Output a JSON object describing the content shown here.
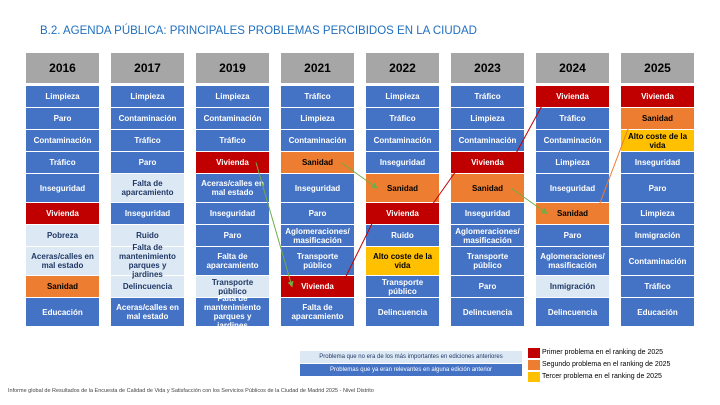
{
  "title": "B.2. AGENDA PÚBLICA: PRINCIPALES PROBLEMAS PERCIBIDOS EN LA CIUDAD",
  "colors": {
    "header": "#a6a6a6",
    "blue": "#4472c4",
    "light": "#dde8f5",
    "red": "#c00000",
    "orange": "#ed7d31",
    "yellow": "#ffc000",
    "arrow_green": "#70ad47",
    "arrow_red": "#c00000",
    "arrow_orange": "#ed7d31"
  },
  "chart_data": {
    "type": "table",
    "columns": [
      {
        "year": "2016",
        "items": [
          {
            "label": "Limpieza",
            "style": "blue"
          },
          {
            "label": "Paro",
            "style": "blue"
          },
          {
            "label": "Contaminación",
            "style": "blue"
          },
          {
            "label": "Tráfico",
            "style": "blue"
          },
          {
            "label": "Inseguridad",
            "style": "blue"
          },
          {
            "label": "Vivienda",
            "style": "red"
          },
          {
            "label": "Pobreza",
            "style": "light"
          },
          {
            "label": "Aceras/calles en mal estado",
            "style": "light"
          },
          {
            "label": "Sanidad",
            "style": "orange"
          },
          {
            "label": "Educación",
            "style": "blue"
          }
        ]
      },
      {
        "year": "2017",
        "items": [
          {
            "label": "Limpieza",
            "style": "blue"
          },
          {
            "label": "Contaminación",
            "style": "blue"
          },
          {
            "label": "Tráfico",
            "style": "blue"
          },
          {
            "label": "Paro",
            "style": "blue"
          },
          {
            "label": "Falta de aparcamiento",
            "style": "light"
          },
          {
            "label": "Inseguridad",
            "style": "blue"
          },
          {
            "label": "Ruido",
            "style": "light"
          },
          {
            "label": "Falta de mantenimiento parques y jardines",
            "style": "light"
          },
          {
            "label": "Delincuencia",
            "style": "light"
          },
          {
            "label": "Aceras/calles en mal estado",
            "style": "blue"
          }
        ]
      },
      {
        "year": "2019",
        "items": [
          {
            "label": "Limpieza",
            "style": "blue"
          },
          {
            "label": "Contaminación",
            "style": "blue"
          },
          {
            "label": "Tráfico",
            "style": "blue"
          },
          {
            "label": "Vivienda",
            "style": "red"
          },
          {
            "label": "Aceras/calles en mal estado",
            "style": "blue"
          },
          {
            "label": "Inseguridad",
            "style": "blue"
          },
          {
            "label": "Paro",
            "style": "blue"
          },
          {
            "label": "Falta de aparcamiento",
            "style": "blue"
          },
          {
            "label": "Transporte público",
            "style": "light"
          },
          {
            "label": "Falta de mantenimiento parques y jardines",
            "style": "blue"
          }
        ]
      },
      {
        "year": "2021",
        "items": [
          {
            "label": "Tráfico",
            "style": "blue"
          },
          {
            "label": "Limpieza",
            "style": "blue"
          },
          {
            "label": "Contaminación",
            "style": "blue"
          },
          {
            "label": "Sanidad",
            "style": "orange"
          },
          {
            "label": "Inseguridad",
            "style": "blue"
          },
          {
            "label": "Paro",
            "style": "blue"
          },
          {
            "label": "Aglomeraciones/ masificación",
            "style": "blue"
          },
          {
            "label": "Transporte público",
            "style": "blue"
          },
          {
            "label": "Vivienda",
            "style": "red"
          },
          {
            "label": "Falta de aparcamiento",
            "style": "blue"
          }
        ]
      },
      {
        "year": "2022",
        "items": [
          {
            "label": "Limpieza",
            "style": "blue"
          },
          {
            "label": "Tráfico",
            "style": "blue"
          },
          {
            "label": "Contaminación",
            "style": "blue"
          },
          {
            "label": "Inseguridad",
            "style": "blue"
          },
          {
            "label": "Sanidad",
            "style": "orange"
          },
          {
            "label": "Vivienda",
            "style": "red"
          },
          {
            "label": "Ruido",
            "style": "blue"
          },
          {
            "label": "Alto coste de la vida",
            "style": "yellow"
          },
          {
            "label": "Transporte público",
            "style": "blue"
          },
          {
            "label": "Delincuencia",
            "style": "blue"
          }
        ]
      },
      {
        "year": "2023",
        "items": [
          {
            "label": "Tráfico",
            "style": "blue"
          },
          {
            "label": "Limpieza",
            "style": "blue"
          },
          {
            "label": "Contaminación",
            "style": "blue"
          },
          {
            "label": "Vivienda",
            "style": "red"
          },
          {
            "label": "Sanidad",
            "style": "orange"
          },
          {
            "label": "Inseguridad",
            "style": "blue"
          },
          {
            "label": "Aglomeraciones/ masificación",
            "style": "blue"
          },
          {
            "label": "Transporte público",
            "style": "blue"
          },
          {
            "label": "Paro",
            "style": "blue"
          },
          {
            "label": "Delincuencia",
            "style": "blue"
          }
        ]
      },
      {
        "year": "2024",
        "items": [
          {
            "label": "Vivienda",
            "style": "red"
          },
          {
            "label": "Tráfico",
            "style": "blue"
          },
          {
            "label": "Contaminación",
            "style": "blue"
          },
          {
            "label": "Limpieza",
            "style": "blue"
          },
          {
            "label": "Inseguridad",
            "style": "blue"
          },
          {
            "label": "Sanidad",
            "style": "orange"
          },
          {
            "label": "Paro",
            "style": "blue"
          },
          {
            "label": "Aglomeraciones/ masificación",
            "style": "blue"
          },
          {
            "label": "Inmigración",
            "style": "light"
          },
          {
            "label": "Delincuencia",
            "style": "blue"
          }
        ]
      },
      {
        "year": "2025",
        "items": [
          {
            "label": "Vivienda",
            "style": "red"
          },
          {
            "label": "Sanidad",
            "style": "orange"
          },
          {
            "label": "Alto coste de la vida",
            "style": "yellow"
          },
          {
            "label": "Inseguridad",
            "style": "blue"
          },
          {
            "label": "Paro",
            "style": "blue"
          },
          {
            "label": "Limpieza",
            "style": "blue"
          },
          {
            "label": "Inmigración",
            "style": "blue"
          },
          {
            "label": "Contaminación",
            "style": "blue"
          },
          {
            "label": "Tráfico",
            "style": "blue"
          },
          {
            "label": "Educación",
            "style": "blue"
          }
        ]
      }
    ],
    "legend": {
      "light": "Problema que no era de los más importantes en ediciones anteriores",
      "blue": "Problemas que ya eran relevantes en alguna edición anterior",
      "red": "Primer problema en el ranking de 2025",
      "orange": "Segundo problema en el ranking de 2025",
      "yellow": "Tercer problema en el ranking de 2025"
    }
  },
  "footer": "Informe global de Resultados de la Encuesta de Calidad de Vida y Satisfacción con los Servicios Públicos de la Ciudad de Madrid 2025 - Nivel Distrito"
}
